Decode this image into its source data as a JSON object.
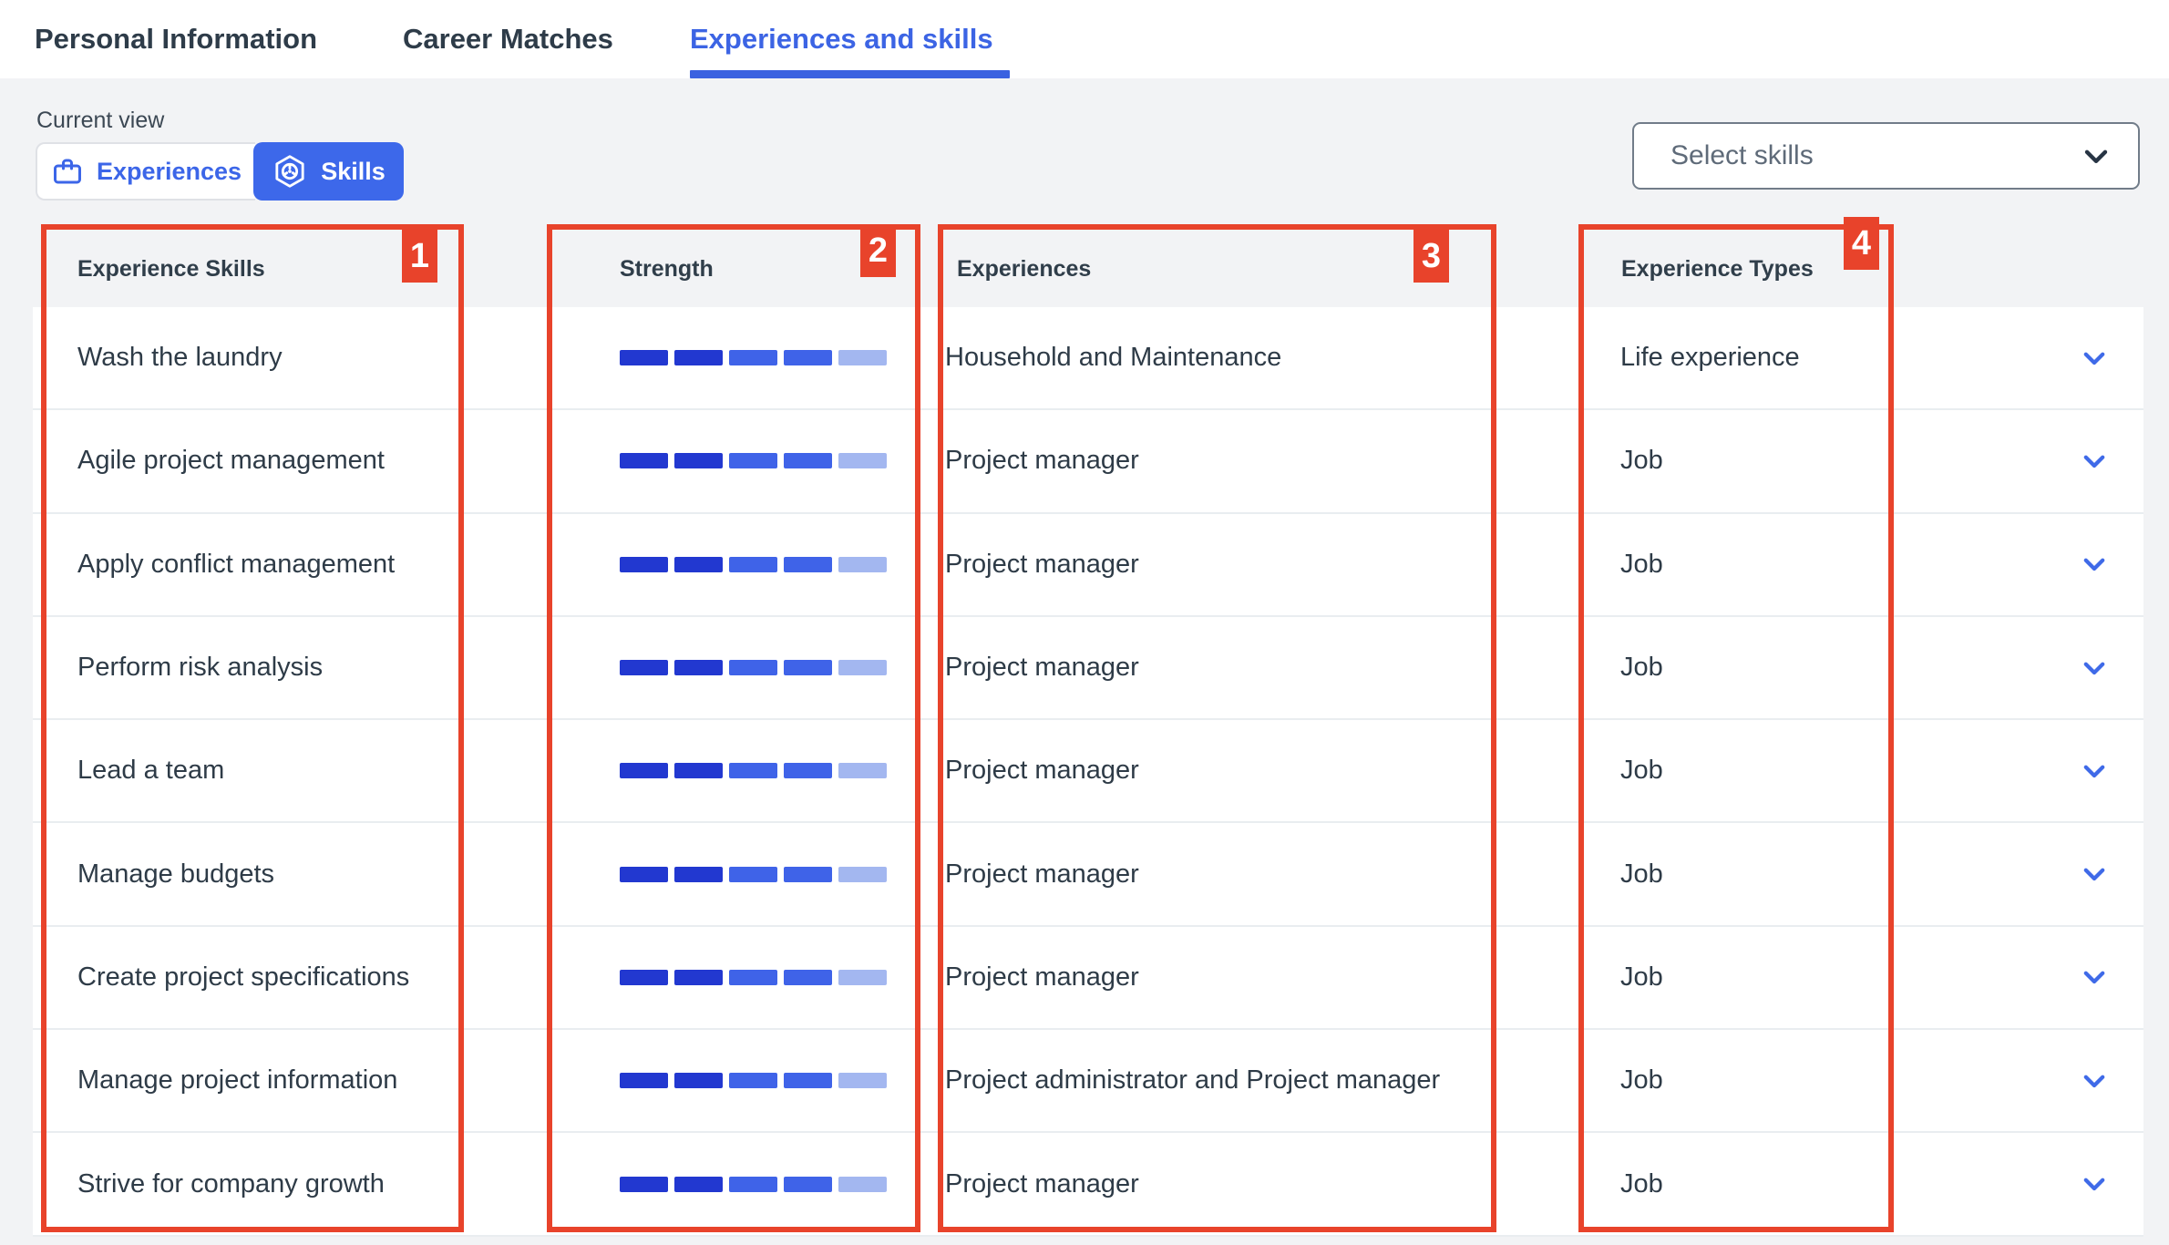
{
  "tabs": [
    {
      "label": "Personal Information",
      "active": false
    },
    {
      "label": "Career Matches",
      "active": false
    },
    {
      "label": "Experiences and skills",
      "active": true
    }
  ],
  "toolbar": {
    "current_view_label": "Current view",
    "experiences_button_label": "Experiences",
    "skills_button_label": "Skills",
    "select_skills_placeholder": "Select skills"
  },
  "table": {
    "headers": {
      "skills": "Experience Skills",
      "strength": "Strength",
      "experiences": "Experiences",
      "types": "Experience Types"
    },
    "rows": [
      {
        "skill": "Wash the laundry",
        "strength": [
          "dark",
          "dark",
          "medium",
          "medium",
          "light"
        ],
        "experience": "Household and Maintenance",
        "type": "Life experience"
      },
      {
        "skill": "Agile project management",
        "strength": [
          "dark",
          "dark",
          "medium",
          "medium",
          "light"
        ],
        "experience": "Project manager",
        "type": "Job"
      },
      {
        "skill": "Apply conflict management",
        "strength": [
          "dark",
          "dark",
          "medium",
          "medium",
          "light"
        ],
        "experience": "Project manager",
        "type": "Job"
      },
      {
        "skill": "Perform risk analysis",
        "strength": [
          "dark",
          "dark",
          "medium",
          "medium",
          "light"
        ],
        "experience": "Project manager",
        "type": "Job"
      },
      {
        "skill": "Lead a team",
        "strength": [
          "dark",
          "dark",
          "medium",
          "medium",
          "light"
        ],
        "experience": "Project manager",
        "type": "Job"
      },
      {
        "skill": "Manage budgets",
        "strength": [
          "dark",
          "dark",
          "medium",
          "medium",
          "light"
        ],
        "experience": "Project manager",
        "type": "Job"
      },
      {
        "skill": "Create project specifications",
        "strength": [
          "dark",
          "dark",
          "medium",
          "medium",
          "light"
        ],
        "experience": "Project manager",
        "type": "Job"
      },
      {
        "skill": "Manage project information",
        "strength": [
          "dark",
          "dark",
          "medium",
          "medium",
          "light"
        ],
        "experience": "Project administrator and Project manager",
        "type": "Job"
      },
      {
        "skill": "Strive for company growth",
        "strength": [
          "dark",
          "dark",
          "medium",
          "medium",
          "light"
        ],
        "experience": "Project manager",
        "type": "Job"
      }
    ]
  },
  "strength_colors": {
    "dark": "#2238d0",
    "medium": "#3f63e8",
    "light": "#a3b7f0"
  },
  "annotations": [
    {
      "number": "1",
      "target": "experience-skills-column"
    },
    {
      "number": "2",
      "target": "strength-column"
    },
    {
      "number": "3",
      "target": "experiences-column"
    },
    {
      "number": "4",
      "target": "experience-types-column"
    }
  ],
  "colors": {
    "accent_blue": "#3c64e4",
    "button_blue": "#3d68ea",
    "annotation_red": "#e8432b",
    "row_chevron_blue": "#3f6ae8"
  }
}
